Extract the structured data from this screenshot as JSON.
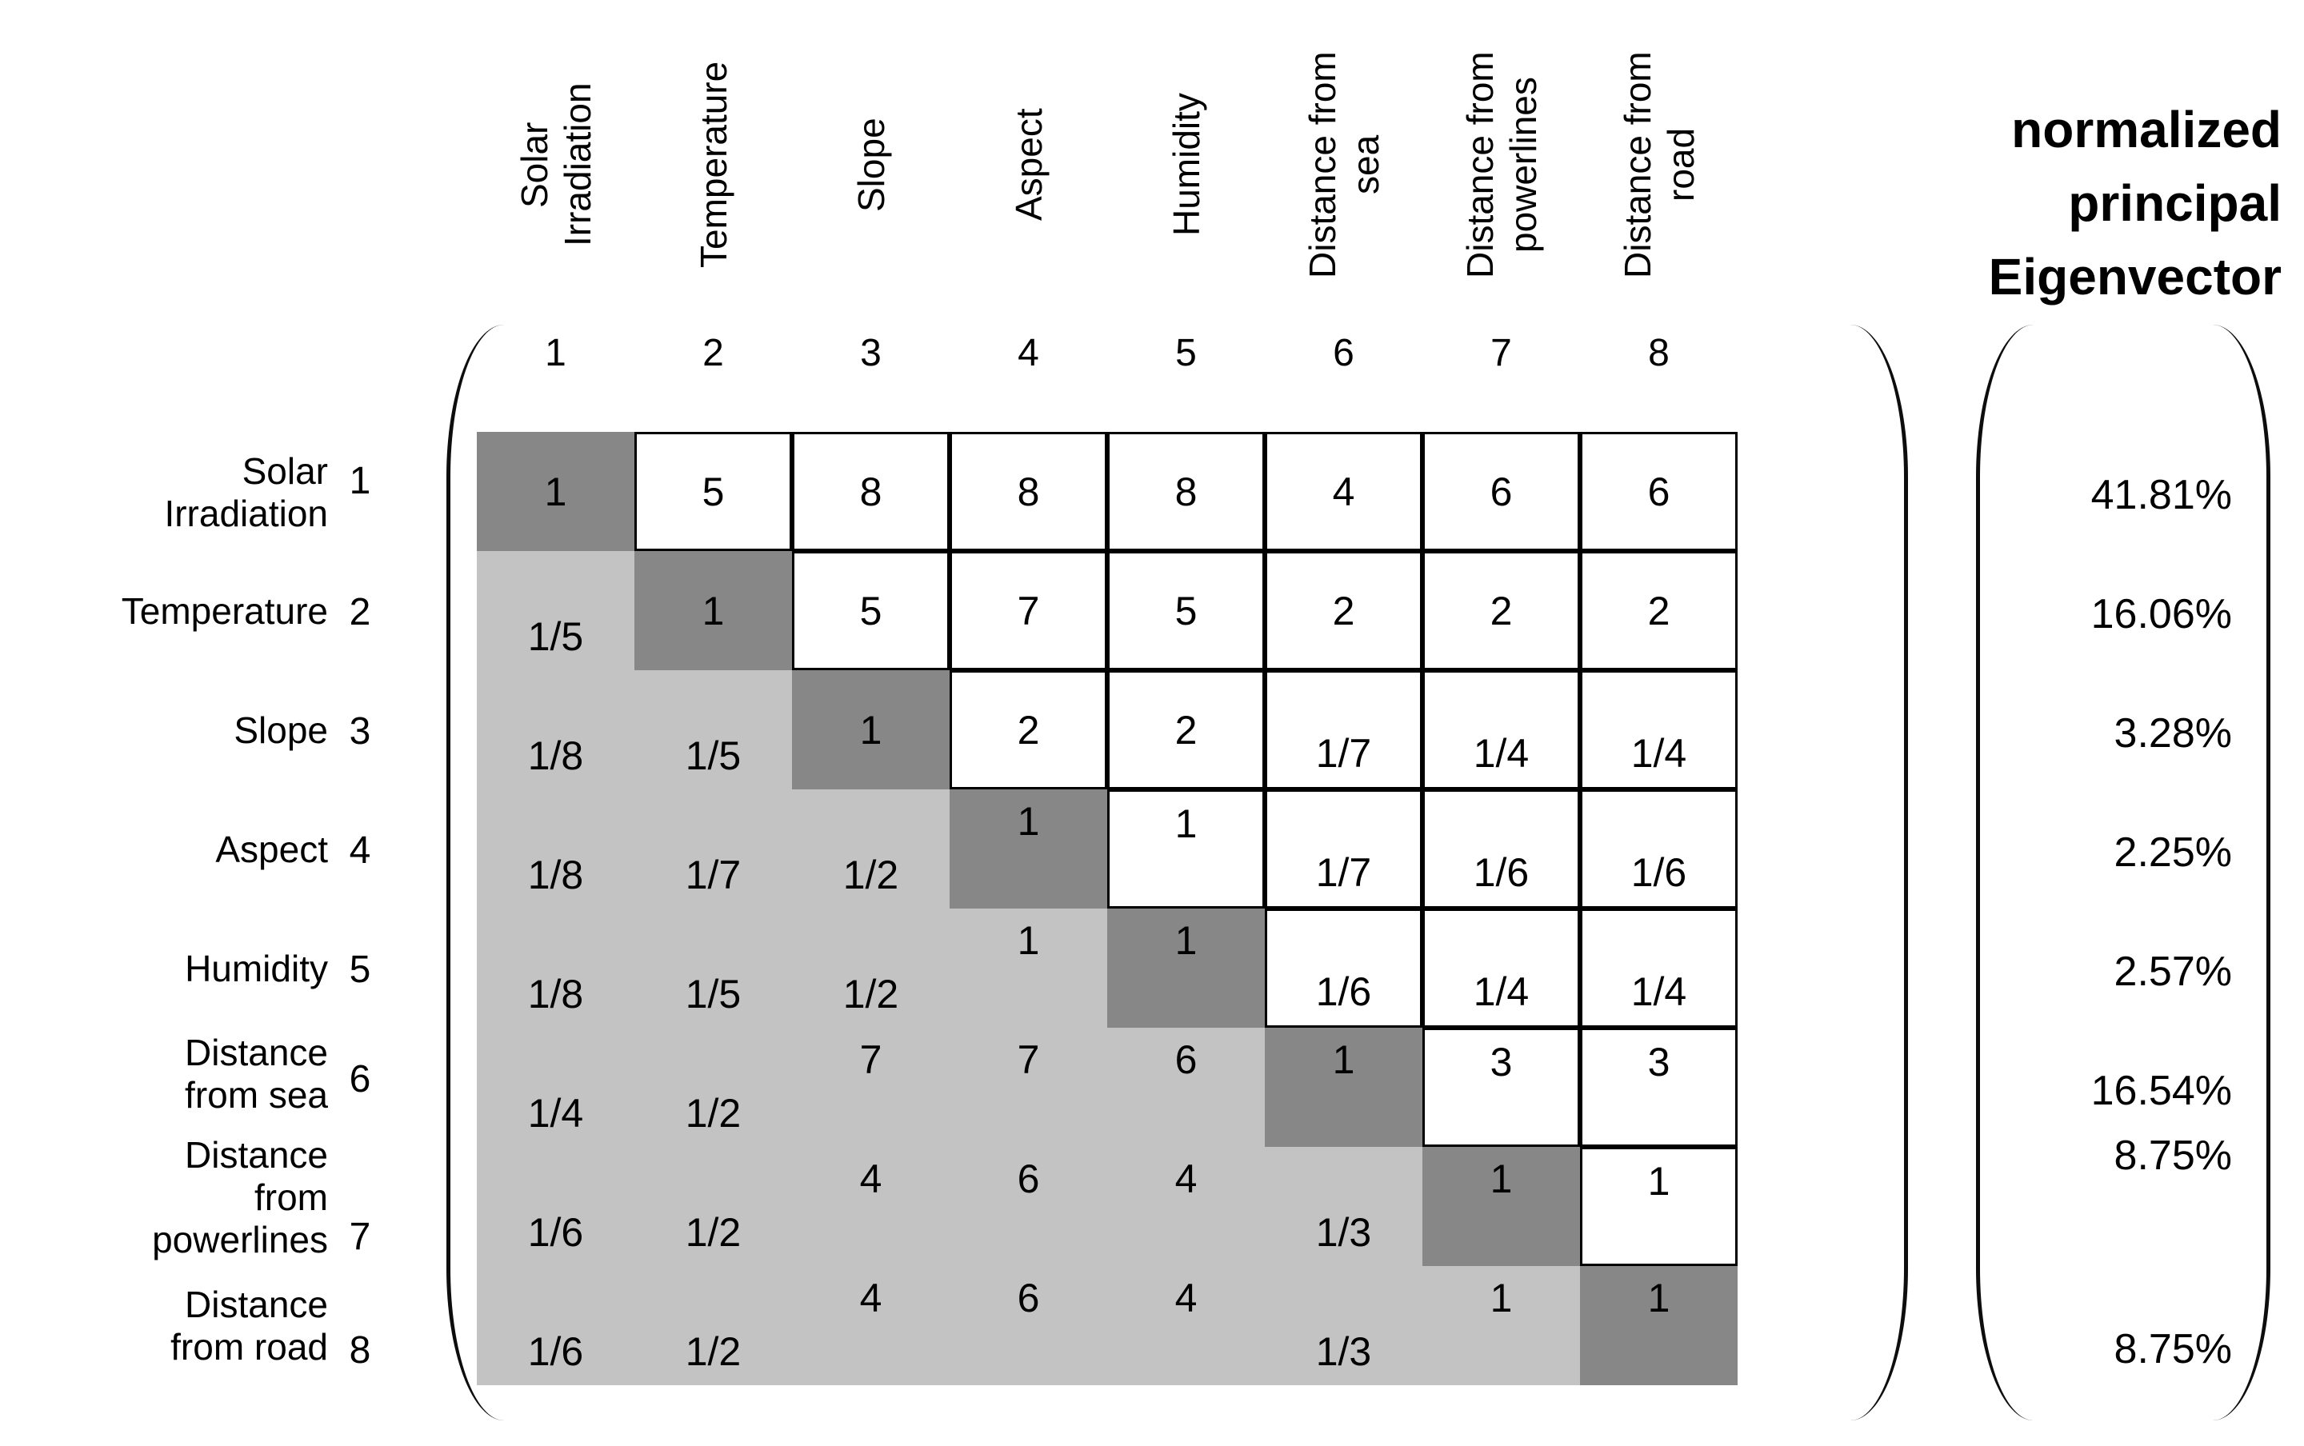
{
  "figure": {
    "eigenvector_header": [
      "normalized",
      "principal",
      "Eigenvector"
    ],
    "rows": [
      {
        "num": "1",
        "label": [
          "Solar",
          "Irradiation"
        ],
        "col_label": [
          "Solar",
          "Irradiation"
        ],
        "eigenvector": "41.81%"
      },
      {
        "num": "2",
        "label": [
          "Temperature"
        ],
        "col_label": [
          "Temperature"
        ],
        "eigenvector": "16.06%"
      },
      {
        "num": "3",
        "label": [
          "Slope"
        ],
        "col_label": [
          "Slope"
        ],
        "eigenvector": "3.28%"
      },
      {
        "num": "4",
        "label": [
          "Aspect"
        ],
        "col_label": [
          "Aspect"
        ],
        "eigenvector": "2.25%"
      },
      {
        "num": "5",
        "label": [
          "Humidity"
        ],
        "col_label": [
          "Humidity"
        ],
        "eigenvector": "2.57%"
      },
      {
        "num": "6",
        "label": [
          "Distance",
          "from sea"
        ],
        "col_label": [
          "Distance from",
          "sea"
        ],
        "eigenvector": "16.54%"
      },
      {
        "num": "7",
        "label": [
          "Distance",
          "from",
          "powerlines"
        ],
        "col_label": [
          "Distance from",
          "powerlines"
        ],
        "eigenvector": "8.75%"
      },
      {
        "num": "8",
        "label": [
          "Distance",
          "from road"
        ],
        "col_label": [
          "Distance from",
          "road"
        ],
        "eigenvector": "8.75%"
      }
    ],
    "matrix": [
      [
        "1",
        "5",
        "8",
        "8",
        "8",
        "4",
        "6",
        "6"
      ],
      [
        "1/5",
        "1",
        "5",
        "7",
        "5",
        "2",
        "2",
        "2"
      ],
      [
        "1/8",
        "1/5",
        "1",
        "2",
        "2",
        "1/7",
        "1/4",
        "1/4"
      ],
      [
        "1/8",
        "1/7",
        "1/2",
        "1",
        "1",
        "1/7",
        "1/6",
        "1/6"
      ],
      [
        "1/8",
        "1/5",
        "1/2",
        "1",
        "1",
        "1/6",
        "1/4",
        "1/4"
      ],
      [
        "1/4",
        "1/2",
        "7",
        "7",
        "6",
        "1",
        "3",
        "3"
      ],
      [
        "1/6",
        "1/2",
        "4",
        "6",
        "4",
        "1/3",
        "1",
        "1"
      ],
      [
        "1/6",
        "1/2",
        "4",
        "6",
        "4",
        "1/3",
        "1",
        "1"
      ]
    ],
    "colors": {
      "diagonal": "#878787",
      "lower_triangle": "#c3c3c3",
      "cell_background": "#ffffff",
      "grid_border": "#000000"
    }
  }
}
